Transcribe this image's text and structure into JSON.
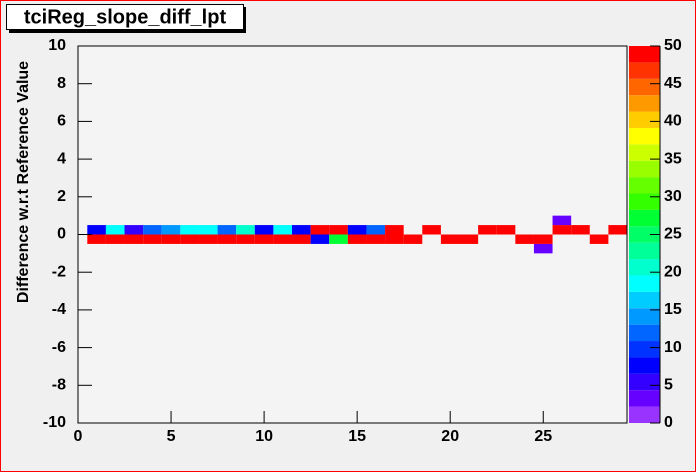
{
  "chart_data": {
    "type": "heatmap",
    "title": "tciReg_slope_diff_lpt",
    "ylabel": "Difference w.r.t Reference Value",
    "xlim": [
      0,
      29.5
    ],
    "ylim": [
      -10,
      10
    ],
    "xticks": [
      0,
      5,
      10,
      15,
      20,
      25
    ],
    "yticks": [
      -10,
      -8,
      -6,
      -4,
      -2,
      0,
      2,
      4,
      6,
      8,
      10
    ],
    "zlim": [
      0,
      50
    ],
    "zticks": [
      0,
      5,
      10,
      15,
      20,
      25,
      30,
      35,
      40,
      45,
      50
    ],
    "xbin_width": 1,
    "ybin_width": 0.5,
    "palette": [
      "#9933ff",
      "#6600ff",
      "#3300ff",
      "#0000ff",
      "#0033ff",
      "#0066ff",
      "#0099ff",
      "#00ccff",
      "#00ffff",
      "#00ffcc",
      "#00ff99",
      "#00ff66",
      "#00ff33",
      "#33ff00",
      "#66ff00",
      "#99ff00",
      "#ccff00",
      "#ffff00",
      "#ffcc00",
      "#ff9900",
      "#ff6600",
      "#ff3300",
      "#ff0000"
    ],
    "cells": [
      {
        "x": 1,
        "y": 0.25,
        "z": 8
      },
      {
        "x": 2,
        "y": 0.25,
        "z": 18
      },
      {
        "x": 3,
        "y": 0.25,
        "z": 5
      },
      {
        "x": 4,
        "y": 0.25,
        "z": 13
      },
      {
        "x": 5,
        "y": 0.25,
        "z": 14
      },
      {
        "x": 6,
        "y": 0.25,
        "z": 18
      },
      {
        "x": 7,
        "y": 0.25,
        "z": 18
      },
      {
        "x": 8,
        "y": 0.25,
        "z": 12
      },
      {
        "x": 9,
        "y": 0.25,
        "z": 21
      },
      {
        "x": 10,
        "y": 0.25,
        "z": 8
      },
      {
        "x": 11,
        "y": 0.25,
        "z": 18
      },
      {
        "x": 12,
        "y": 0.25,
        "z": 7
      },
      {
        "x": 13,
        "y": 0.25,
        "z": 50
      },
      {
        "x": 14,
        "y": 0.25,
        "z": 50
      },
      {
        "x": 15,
        "y": 0.25,
        "z": 8
      },
      {
        "x": 16,
        "y": 0.25,
        "z": 13
      },
      {
        "x": 17,
        "y": 0.25,
        "z": 50
      },
      {
        "x": 19,
        "y": 0.25,
        "z": 50
      },
      {
        "x": 22,
        "y": 0.25,
        "z": 50
      },
      {
        "x": 23,
        "y": 0.25,
        "z": 50
      },
      {
        "x": 26,
        "y": 0.25,
        "z": 50
      },
      {
        "x": 27,
        "y": 0.25,
        "z": 50
      },
      {
        "x": 29,
        "y": 0.25,
        "z": 50
      },
      {
        "x": 26,
        "y": 0.75,
        "z": 3
      },
      {
        "x": 1,
        "y": -0.25,
        "z": 50
      },
      {
        "x": 2,
        "y": -0.25,
        "z": 50
      },
      {
        "x": 3,
        "y": -0.25,
        "z": 50
      },
      {
        "x": 4,
        "y": -0.25,
        "z": 50
      },
      {
        "x": 5,
        "y": -0.25,
        "z": 50
      },
      {
        "x": 6,
        "y": -0.25,
        "z": 50
      },
      {
        "x": 7,
        "y": -0.25,
        "z": 50
      },
      {
        "x": 8,
        "y": -0.25,
        "z": 50
      },
      {
        "x": 9,
        "y": -0.25,
        "z": 50
      },
      {
        "x": 10,
        "y": -0.25,
        "z": 50
      },
      {
        "x": 11,
        "y": -0.25,
        "z": 50
      },
      {
        "x": 12,
        "y": -0.25,
        "z": 50
      },
      {
        "x": 13,
        "y": -0.25,
        "z": 7
      },
      {
        "x": 14,
        "y": -0.25,
        "z": 27
      },
      {
        "x": 15,
        "y": -0.25,
        "z": 50
      },
      {
        "x": 16,
        "y": -0.25,
        "z": 50
      },
      {
        "x": 17,
        "y": -0.25,
        "z": 50
      },
      {
        "x": 18,
        "y": -0.25,
        "z": 50
      },
      {
        "x": 20,
        "y": -0.25,
        "z": 50
      },
      {
        "x": 21,
        "y": -0.25,
        "z": 50
      },
      {
        "x": 24,
        "y": -0.25,
        "z": 50
      },
      {
        "x": 25,
        "y": -0.25,
        "z": 50
      },
      {
        "x": 28,
        "y": -0.25,
        "z": 50
      },
      {
        "x": 25,
        "y": -0.75,
        "z": 3
      }
    ]
  }
}
